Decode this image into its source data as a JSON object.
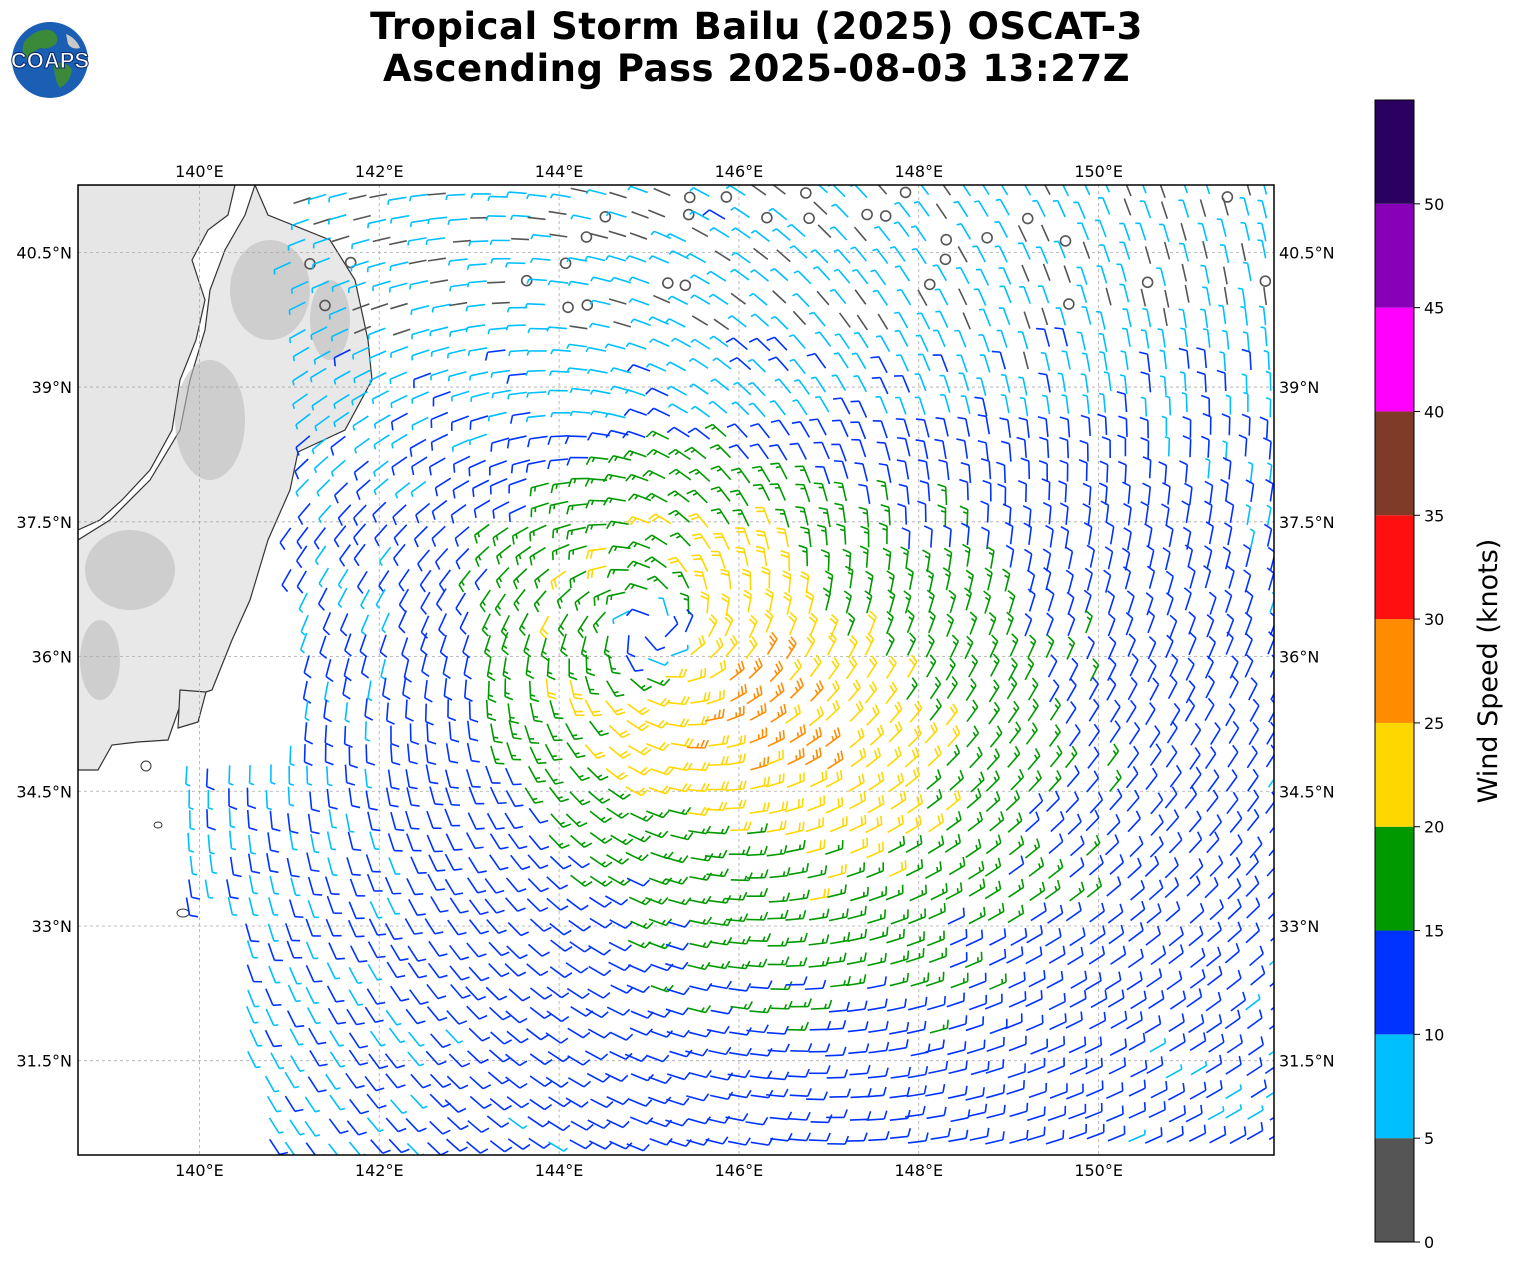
{
  "title": {
    "line1": "Tropical Storm Bailu (2025) OSCAT-3",
    "line2": "Ascending Pass 2025-08-03 13:27Z"
  },
  "logo": {
    "text": "COAPS",
    "icon": "globe-logo-icon"
  },
  "map": {
    "lon_range": [
      138.65,
      151.95
    ],
    "lat_range": [
      30.45,
      41.25
    ],
    "lon_ticks": [
      {
        "value": 140,
        "label": "140°E"
      },
      {
        "value": 142,
        "label": "142°E"
      },
      {
        "value": 144,
        "label": "144°E"
      },
      {
        "value": 146,
        "label": "146°E"
      },
      {
        "value": 148,
        "label": "148°E"
      },
      {
        "value": 150,
        "label": "150°E"
      }
    ],
    "lat_ticks": [
      {
        "value": 40.5,
        "label": "40.5°N"
      },
      {
        "value": 39,
        "label": "39°N"
      },
      {
        "value": 37.5,
        "label": "37.5°N"
      },
      {
        "value": 36,
        "label": "36°N"
      },
      {
        "value": 34.5,
        "label": "34.5°N"
      },
      {
        "value": 33,
        "label": "33°N"
      },
      {
        "value": 31.5,
        "label": "31.5°N"
      }
    ],
    "gridlines": true,
    "storm_center": {
      "lon": 145.0,
      "lat": 36.3
    },
    "max_wind_area": {
      "lon": 147.0,
      "lat": 34.8
    }
  },
  "colorbar": {
    "label": "Wind Speed (knots)",
    "bins": [
      {
        "from": 0,
        "to": 5,
        "color": "#555555"
      },
      {
        "from": 5,
        "to": 10,
        "color": "#00bfff"
      },
      {
        "from": 10,
        "to": 15,
        "color": "#0033ff"
      },
      {
        "from": 15,
        "to": 20,
        "color": "#009900"
      },
      {
        "from": 20,
        "to": 25,
        "color": "#ffd700"
      },
      {
        "from": 25,
        "to": 30,
        "color": "#ff8c00"
      },
      {
        "from": 30,
        "to": 35,
        "color": "#ff0f0f"
      },
      {
        "from": 35,
        "to": 40,
        "color": "#803a28"
      },
      {
        "from": 40,
        "to": 45,
        "color": "#ff00ff"
      },
      {
        "from": 45,
        "to": 50,
        "color": "#8800b8"
      },
      {
        "from": 50,
        "to": 55,
        "color": "#2a0060"
      }
    ],
    "ticks": [
      0,
      5,
      10,
      15,
      20,
      25,
      30,
      35,
      40,
      45,
      50
    ]
  }
}
